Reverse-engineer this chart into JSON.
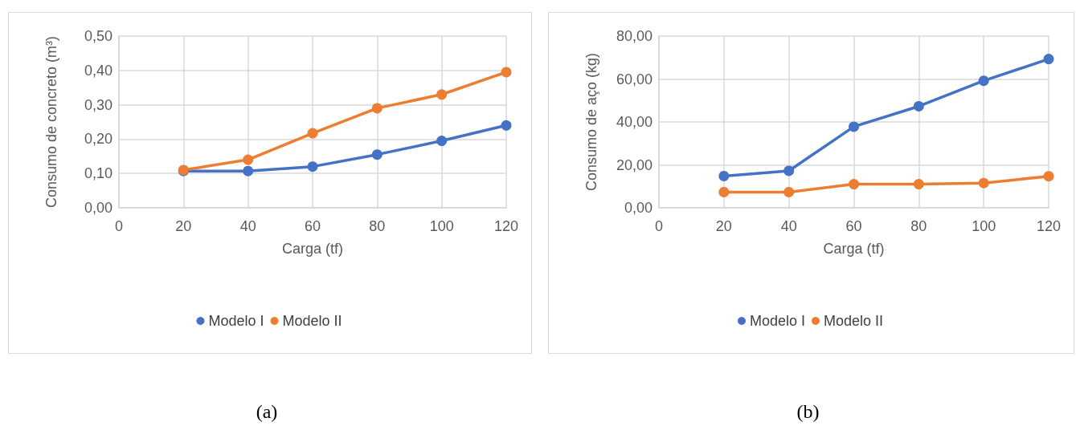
{
  "chart_data": [
    {
      "type": "line",
      "xlabel": "Carga (tf)",
      "ylabel": "Consumo de concreto (m³)",
      "annotations": [
        "(a)"
      ],
      "xlim": [
        0,
        120
      ],
      "xticks": [
        0,
        20,
        40,
        60,
        80,
        100,
        120
      ],
      "ylim": [
        0,
        0.5
      ],
      "yticks": [
        {
          "value": 0,
          "label": "0,00"
        },
        {
          "value": 0.1,
          "label": "0,10"
        },
        {
          "value": 0.2,
          "label": "0,20"
        },
        {
          "value": 0.3,
          "label": "0,30"
        },
        {
          "value": 0.4,
          "label": "0,40"
        },
        {
          "value": 0.5,
          "label": "0,50"
        }
      ],
      "x": [
        20,
        40,
        60,
        80,
        100,
        120
      ],
      "series": [
        {
          "name": "Modelo I",
          "color": "#4472c4",
          "values": [
            0.107,
            0.107,
            0.12,
            0.155,
            0.195,
            0.24
          ]
        },
        {
          "name": "Modelo II",
          "color": "#ed7d31",
          "values": [
            0.11,
            0.14,
            0.217,
            0.29,
            0.33,
            0.395
          ]
        }
      ],
      "grid": true,
      "legend": "bottom",
      "marker": "circle",
      "line_style": "solid"
    },
    {
      "type": "line",
      "xlabel": "Carga (tf)",
      "ylabel": "Consumo de aço (kg)",
      "annotations": [
        "(b)"
      ],
      "xlim": [
        0,
        120
      ],
      "xticks": [
        0,
        20,
        40,
        60,
        80,
        100,
        120
      ],
      "ylim": [
        0,
        80
      ],
      "yticks": [
        {
          "value": 0,
          "label": "0,00"
        },
        {
          "value": 20,
          "label": "20,00"
        },
        {
          "value": 40,
          "label": "40,00"
        },
        {
          "value": 60,
          "label": "60,00"
        },
        {
          "value": 80,
          "label": "80,00"
        }
      ],
      "x": [
        20,
        40,
        60,
        80,
        100,
        120
      ],
      "series": [
        {
          "name": "Modelo I",
          "color": "#4472c4",
          "values": [
            14.8,
            17.2,
            37.8,
            47.3,
            59.2,
            69.3
          ]
        },
        {
          "name": "Modelo II",
          "color": "#ed7d31",
          "values": [
            7.3,
            7.3,
            11,
            11,
            11.5,
            14.7
          ]
        }
      ],
      "grid": true,
      "legend": "bottom",
      "marker": "circle",
      "line_style": "solid"
    }
  ]
}
